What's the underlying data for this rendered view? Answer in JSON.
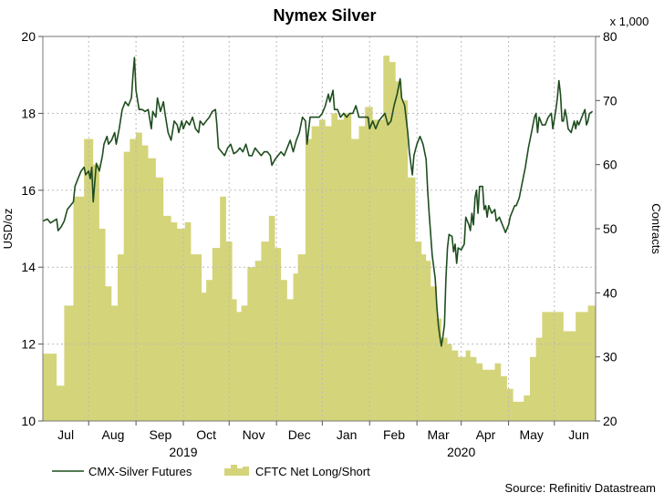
{
  "chart_data": {
    "type": "line+area",
    "title": "Nymex Silver",
    "ylabel_left": "USD/oz",
    "ylabel_right": "Contracts",
    "right_multiplier": "x 1,000",
    "source": "Source: Refinitiv Datastream",
    "ylim_left": [
      10,
      20
    ],
    "ylim_right": [
      20,
      80
    ],
    "yticks_left": [
      "10",
      "12",
      "14",
      "16",
      "18",
      "20"
    ],
    "yticks_right": [
      "20",
      "30",
      "40",
      "50",
      "60",
      "70",
      "80"
    ],
    "x_range_days": [
      0,
      362
    ],
    "months": [
      {
        "label": "Jul",
        "day": 15
      },
      {
        "label": "Aug",
        "day": 46
      },
      {
        "label": "Sep",
        "day": 77
      },
      {
        "label": "Oct",
        "day": 107
      },
      {
        "label": "Nov",
        "day": 138
      },
      {
        "label": "Dec",
        "day": 168
      },
      {
        "label": "Jan",
        "day": 199
      },
      {
        "label": "Feb",
        "day": 230
      },
      {
        "label": "Mar",
        "day": 259
      },
      {
        "label": "Apr",
        "day": 290
      },
      {
        "label": "May",
        "day": 320
      },
      {
        "label": "Jun",
        "day": 351
      }
    ],
    "month_boundaries": [
      30,
      61,
      92,
      122,
      153,
      183,
      214,
      245,
      274,
      305,
      335
    ],
    "years": [
      {
        "label": "2019",
        "day": 92
      },
      {
        "label": "2020",
        "day": 274
      }
    ],
    "series": [
      {
        "name": "CMX-Silver Futures",
        "axis": "left",
        "kind": "line",
        "color": "#1f4d1f",
        "points": [
          [
            0,
            15.2
          ],
          [
            3,
            15.25
          ],
          [
            5,
            15.15
          ],
          [
            7,
            15.2
          ],
          [
            9,
            15.25
          ],
          [
            10,
            14.95
          ],
          [
            12,
            15.05
          ],
          [
            14,
            15.2
          ],
          [
            16,
            15.5
          ],
          [
            18,
            15.6
          ],
          [
            20,
            15.7
          ],
          [
            21,
            16.1
          ],
          [
            23,
            16.3
          ],
          [
            25,
            16.5
          ],
          [
            27,
            16.6
          ],
          [
            28,
            16.4
          ],
          [
            30,
            16.5
          ],
          [
            31,
            16.3
          ],
          [
            32,
            16.6
          ],
          [
            33,
            15.7
          ],
          [
            35,
            16.7
          ],
          [
            37,
            16.5
          ],
          [
            39,
            16.9
          ],
          [
            40,
            17.2
          ],
          [
            42,
            17.4
          ],
          [
            43,
            17.2
          ],
          [
            45,
            17.3
          ],
          [
            47,
            17.5
          ],
          [
            48,
            17.2
          ],
          [
            50,
            17.6
          ],
          [
            52,
            18.1
          ],
          [
            54,
            18.3
          ],
          [
            56,
            18.2
          ],
          [
            58,
            18.4
          ],
          [
            59,
            19.0
          ],
          [
            60,
            19.45
          ],
          [
            61,
            18.6
          ],
          [
            63,
            18.1
          ],
          [
            65,
            18.1
          ],
          [
            67,
            18.05
          ],
          [
            69,
            18.1
          ],
          [
            71,
            17.6
          ],
          [
            72,
            18.05
          ],
          [
            74,
            17.9
          ],
          [
            75,
            18.4
          ],
          [
            77,
            18.05
          ],
          [
            79,
            18.3
          ],
          [
            80,
            18.0
          ],
          [
            82,
            17.5
          ],
          [
            84,
            17.3
          ],
          [
            86,
            17.8
          ],
          [
            88,
            17.7
          ],
          [
            89,
            17.5
          ],
          [
            91,
            17.8
          ],
          [
            92,
            17.6
          ],
          [
            94,
            17.8
          ],
          [
            96,
            17.7
          ],
          [
            98,
            17.9
          ],
          [
            100,
            17.6
          ],
          [
            102,
            17.5
          ],
          [
            103,
            17.8
          ],
          [
            105,
            17.7
          ],
          [
            107,
            17.8
          ],
          [
            109,
            17.9
          ],
          [
            111,
            18.05
          ],
          [
            113,
            18.1
          ],
          [
            114,
            17.7
          ],
          [
            115,
            17.1
          ],
          [
            117,
            17.0
          ],
          [
            119,
            16.9
          ],
          [
            121,
            17.1
          ],
          [
            123,
            17.2
          ],
          [
            125,
            16.95
          ],
          [
            127,
            17.0
          ],
          [
            129,
            17.1
          ],
          [
            131,
            17.0
          ],
          [
            133,
            17.2
          ],
          [
            135,
            16.9
          ],
          [
            137,
            16.9
          ],
          [
            139,
            17.1
          ],
          [
            141,
            17.0
          ],
          [
            143,
            16.9
          ],
          [
            145,
            17.0
          ],
          [
            147,
            17.0
          ],
          [
            149,
            16.9
          ],
          [
            150,
            16.65
          ],
          [
            152,
            16.8
          ],
          [
            154,
            16.9
          ],
          [
            156,
            17.0
          ],
          [
            158,
            16.9
          ],
          [
            160,
            17.1
          ],
          [
            162,
            17.3
          ],
          [
            164,
            17.0
          ],
          [
            166,
            17.3
          ],
          [
            168,
            17.5
          ],
          [
            170,
            17.9
          ],
          [
            172,
            17.8
          ],
          [
            173,
            17.2
          ],
          [
            175,
            17.9
          ],
          [
            177,
            17.9
          ],
          [
            179,
            17.9
          ],
          [
            181,
            17.9
          ],
          [
            183,
            18.0
          ],
          [
            185,
            18.2
          ],
          [
            187,
            18.5
          ],
          [
            188,
            18.3
          ],
          [
            190,
            18.6
          ],
          [
            191,
            18.1
          ],
          [
            193,
            18.1
          ],
          [
            195,
            17.9
          ],
          [
            197,
            18.0
          ],
          [
            199,
            17.9
          ],
          [
            201,
            18.0
          ],
          [
            203,
            18.0
          ],
          [
            205,
            18.2
          ],
          [
            207,
            17.9
          ],
          [
            209,
            17.9
          ],
          [
            211,
            17.9
          ],
          [
            213,
            17.9
          ],
          [
            214,
            17.6
          ],
          [
            216,
            17.8
          ],
          [
            218,
            17.6
          ],
          [
            220,
            17.8
          ],
          [
            222,
            17.9
          ],
          [
            224,
            18.0
          ],
          [
            226,
            17.7
          ],
          [
            228,
            17.8
          ],
          [
            230,
            18.2
          ],
          [
            232,
            18.5
          ],
          [
            234,
            18.9
          ],
          [
            235,
            18.4
          ],
          [
            237,
            18.2
          ],
          [
            239,
            17.5
          ],
          [
            240,
            17.0
          ],
          [
            241,
            16.7
          ],
          [
            242,
            16.4
          ],
          [
            243,
            16.9
          ],
          [
            245,
            17.2
          ],
          [
            247,
            17.4
          ],
          [
            249,
            17.2
          ],
          [
            251,
            16.8
          ],
          [
            252,
            16.0
          ],
          [
            253,
            15.4
          ],
          [
            255,
            14.3
          ],
          [
            257,
            13.7
          ],
          [
            258,
            13.0
          ],
          [
            259,
            12.5
          ],
          [
            260,
            12.2
          ],
          [
            261,
            11.95
          ],
          [
            262,
            12.2
          ],
          [
            263,
            12.5
          ],
          [
            264,
            13.7
          ],
          [
            265,
            14.5
          ],
          [
            266,
            14.85
          ],
          [
            268,
            14.8
          ],
          [
            269,
            14.4
          ],
          [
            270,
            14.6
          ],
          [
            271,
            14.1
          ],
          [
            272,
            14.5
          ],
          [
            274,
            14.45
          ],
          [
            276,
            14.6
          ],
          [
            277,
            15.3
          ],
          [
            279,
            15.1
          ],
          [
            280,
            14.95
          ],
          [
            281,
            15.4
          ],
          [
            282,
            15.1
          ],
          [
            283,
            15.8
          ],
          [
            284,
            16.0
          ],
          [
            285,
            15.4
          ],
          [
            286,
            16.1
          ],
          [
            288,
            16.1
          ],
          [
            289,
            15.5
          ],
          [
            290,
            15.6
          ],
          [
            291,
            15.3
          ],
          [
            292,
            15.6
          ],
          [
            294,
            15.4
          ],
          [
            296,
            15.5
          ],
          [
            297,
            15.2
          ],
          [
            299,
            15.3
          ],
          [
            300,
            15.2
          ],
          [
            302,
            15.0
          ],
          [
            303,
            14.9
          ],
          [
            305,
            15.1
          ],
          [
            306,
            15.3
          ],
          [
            307,
            15.4
          ],
          [
            309,
            15.6
          ],
          [
            310,
            15.6
          ],
          [
            312,
            15.8
          ],
          [
            314,
            16.2
          ],
          [
            316,
            16.6
          ],
          [
            318,
            17.1
          ],
          [
            320,
            17.5
          ],
          [
            322,
            17.9
          ],
          [
            323,
            18.0
          ],
          [
            324,
            17.5
          ],
          [
            325,
            17.9
          ],
          [
            327,
            17.7
          ],
          [
            329,
            17.7
          ],
          [
            331,
            17.9
          ],
          [
            333,
            18.0
          ],
          [
            334,
            17.6
          ],
          [
            336,
            18.1
          ],
          [
            337,
            18.4
          ],
          [
            338,
            18.85
          ],
          [
            339,
            18.5
          ],
          [
            340,
            17.8
          ],
          [
            341,
            17.8
          ],
          [
            342,
            18.1
          ],
          [
            343,
            17.9
          ],
          [
            344,
            17.6
          ],
          [
            346,
            17.5
          ],
          [
            348,
            17.8
          ],
          [
            349,
            17.6
          ],
          [
            350,
            17.8
          ],
          [
            351,
            17.7
          ],
          [
            353,
            17.9
          ],
          [
            355,
            18.1
          ],
          [
            356,
            17.7
          ],
          [
            357,
            17.8
          ],
          [
            358,
            18.0
          ],
          [
            360,
            18.05
          ]
        ]
      },
      {
        "name": "CFTC Net Long/Short",
        "axis": "right",
        "kind": "step-area",
        "color": "#d4d47a",
        "steps": [
          [
            0,
            30.5
          ],
          [
            9,
            25.5
          ],
          [
            14,
            38
          ],
          [
            20,
            55
          ],
          [
            27,
            64
          ],
          [
            33,
            60
          ],
          [
            37,
            50
          ],
          [
            41,
            41
          ],
          [
            45,
            38
          ],
          [
            49,
            46
          ],
          [
            53,
            62
          ],
          [
            57,
            64
          ],
          [
            61,
            65
          ],
          [
            65,
            63
          ],
          [
            69,
            61
          ],
          [
            74,
            58
          ],
          [
            79,
            52
          ],
          [
            84,
            51
          ],
          [
            88,
            50
          ],
          [
            93,
            51
          ],
          [
            97,
            46
          ],
          [
            100,
            46
          ],
          [
            104,
            40
          ],
          [
            107,
            42
          ],
          [
            111,
            47
          ],
          [
            116,
            55
          ],
          [
            120,
            48
          ],
          [
            124,
            39
          ],
          [
            127,
            37
          ],
          [
            130,
            38
          ],
          [
            134,
            44
          ],
          [
            139,
            45
          ],
          [
            143,
            48
          ],
          [
            148,
            52
          ],
          [
            152,
            47
          ],
          [
            156,
            42
          ],
          [
            160,
            39
          ],
          [
            164,
            43
          ],
          [
            167,
            46
          ],
          [
            172,
            64
          ],
          [
            176,
            66
          ],
          [
            181,
            67
          ],
          [
            185,
            66
          ],
          [
            189,
            68
          ],
          [
            193,
            67
          ],
          [
            197,
            68
          ],
          [
            202,
            64
          ],
          [
            207,
            66
          ],
          [
            211,
            69
          ],
          [
            216,
            67
          ],
          [
            220,
            67
          ],
          [
            223,
            77
          ],
          [
            227,
            76
          ],
          [
            231,
            73
          ],
          [
            235,
            70
          ],
          [
            239,
            58
          ],
          [
            244,
            48
          ],
          [
            248,
            46
          ],
          [
            251,
            45
          ],
          [
            254,
            41
          ],
          [
            258,
            36
          ],
          [
            261,
            33
          ],
          [
            265,
            32
          ],
          [
            268,
            31
          ],
          [
            272,
            30
          ],
          [
            277,
            31
          ],
          [
            280,
            30
          ],
          [
            284,
            29
          ],
          [
            288,
            28
          ],
          [
            292,
            28
          ],
          [
            296,
            29
          ],
          [
            300,
            27
          ],
          [
            304,
            25
          ],
          [
            308,
            23
          ],
          [
            312,
            23
          ],
          [
            315,
            24
          ],
          [
            319,
            30
          ],
          [
            323,
            33
          ],
          [
            327,
            37
          ],
          [
            331,
            37
          ],
          [
            336,
            37
          ],
          [
            341,
            34
          ],
          [
            345,
            34
          ],
          [
            349,
            37
          ],
          [
            354,
            37
          ],
          [
            357,
            38
          ],
          [
            362,
            38
          ]
        ]
      }
    ]
  }
}
